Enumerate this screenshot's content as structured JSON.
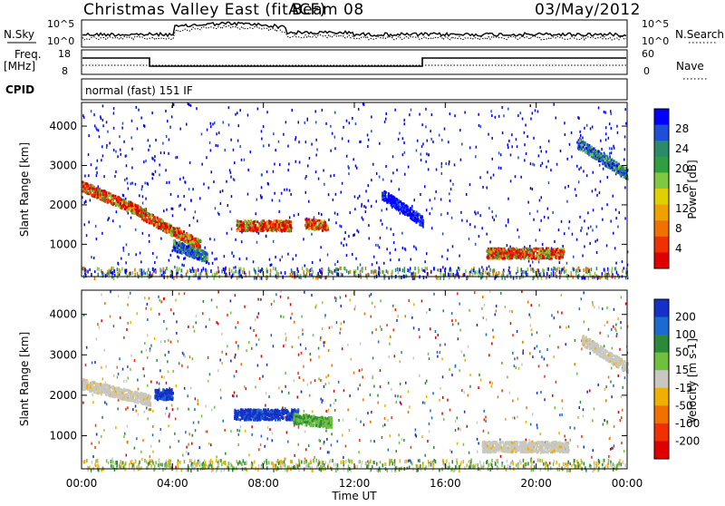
{
  "header": {
    "title": "Christmas Valley East (fitACF)",
    "beam": "Beam 08",
    "date": "03/May/2012"
  },
  "top_panels": {
    "nsky_label": "N.Sky",
    "nsky_ticks": [
      "10^5",
      "10^0"
    ],
    "nsearch_label": "N.Search",
    "nsearch_ticks": [
      "10^5",
      "10^0"
    ],
    "freq_label": "Freq.",
    "freq_unit": "[MHz]",
    "freq_ticks": [
      "18",
      "8"
    ],
    "nave_label": "Nave",
    "nave_ticks": [
      "60",
      "0"
    ],
    "cpid_label": "CPID",
    "cpid_value": "normal (fast) 151 IF"
  },
  "colors": {
    "power_scale": [
      "#0000ff",
      "#1f4fd8",
      "#2a8a6a",
      "#2f9f3f",
      "#80c840",
      "#e0d000",
      "#f0a000",
      "#f07000",
      "#f03000",
      "#e00000"
    ],
    "velocity_scale": [
      "#1530c8",
      "#1a6ad0",
      "#2a8a3a",
      "#70c040",
      "#c8c8c0",
      "#f0b000",
      "#f07000",
      "#f03000",
      "#e00000"
    ]
  },
  "chart_data": [
    {
      "type": "heatmap",
      "name": "power",
      "xlabel": "Time UT",
      "ylabel": "Slant Range [km]",
      "x_ticks": [
        "00:00",
        "04:00",
        "08:00",
        "12:00",
        "16:00",
        "20:00",
        "00:00"
      ],
      "x_range_hours": [
        0,
        24
      ],
      "y_ticks": [
        "1000",
        "2000",
        "3000",
        "4000"
      ],
      "y_range_km": [
        180,
        4600
      ],
      "colorbar": {
        "label": "Power [dB]",
        "ticks": [
          "28",
          "24",
          "20",
          "16",
          "12",
          "8",
          "4"
        ],
        "range": [
          0,
          32
        ]
      },
      "features": [
        {
          "start_h": 0.0,
          "end_h": 2.8,
          "range_start_km": 2500,
          "range_end_km": 1800,
          "level": "high"
        },
        {
          "start_h": 2.6,
          "end_h": 5.2,
          "range_start_km": 1800,
          "range_end_km": 1000,
          "level": "high"
        },
        {
          "start_h": 4.0,
          "end_h": 5.5,
          "range_start_km": 1000,
          "range_end_km": 700,
          "level": "medium"
        },
        {
          "start_h": 6.8,
          "end_h": 9.2,
          "range_start_km": 1500,
          "range_end_km": 1500,
          "level": "high"
        },
        {
          "start_h": 9.8,
          "end_h": 10.8,
          "range_start_km": 1550,
          "range_end_km": 1500,
          "level": "high"
        },
        {
          "start_h": 13.2,
          "end_h": 15.0,
          "range_start_km": 2300,
          "range_end_km": 1600,
          "level": "low"
        },
        {
          "start_h": 17.8,
          "end_h": 21.2,
          "range_start_km": 800,
          "range_end_km": 800,
          "level": "high"
        },
        {
          "start_h": 21.8,
          "end_h": 24.0,
          "range_start_km": 3600,
          "range_end_km": 2800,
          "level": "medium"
        }
      ]
    },
    {
      "type": "heatmap",
      "name": "velocity",
      "xlabel": "Time UT",
      "ylabel": "Slant Range [km]",
      "x_ticks": [
        "00:00",
        "04:00",
        "08:00",
        "12:00",
        "16:00",
        "20:00",
        "00:00"
      ],
      "x_range_hours": [
        0,
        24
      ],
      "y_ticks": [
        "1000",
        "2000",
        "3000",
        "4000"
      ],
      "y_range_km": [
        180,
        4600
      ],
      "colorbar": {
        "label": "Velocity [m s-1]",
        "ticks": [
          "200",
          "100",
          "50",
          "15",
          "-15",
          "-50",
          "-100",
          "-200"
        ],
        "range": [
          -250,
          250
        ]
      },
      "features": [
        {
          "start_h": 0.0,
          "end_h": 3.0,
          "range_start_km": 2300,
          "range_end_km": 1900,
          "velocity": 0
        },
        {
          "start_h": 3.2,
          "end_h": 4.0,
          "range_start_km": 2050,
          "range_end_km": 2050,
          "velocity": 200
        },
        {
          "start_h": 6.7,
          "end_h": 9.5,
          "range_start_km": 1550,
          "range_end_km": 1550,
          "velocity": 180
        },
        {
          "start_h": 9.3,
          "end_h": 11.0,
          "range_start_km": 1450,
          "range_end_km": 1350,
          "velocity": 60
        },
        {
          "start_h": 17.6,
          "end_h": 21.4,
          "range_start_km": 750,
          "range_end_km": 750,
          "velocity": 0
        },
        {
          "start_h": 22.0,
          "end_h": 24.0,
          "range_start_km": 3400,
          "range_end_km": 2700,
          "velocity": 0
        }
      ]
    }
  ]
}
